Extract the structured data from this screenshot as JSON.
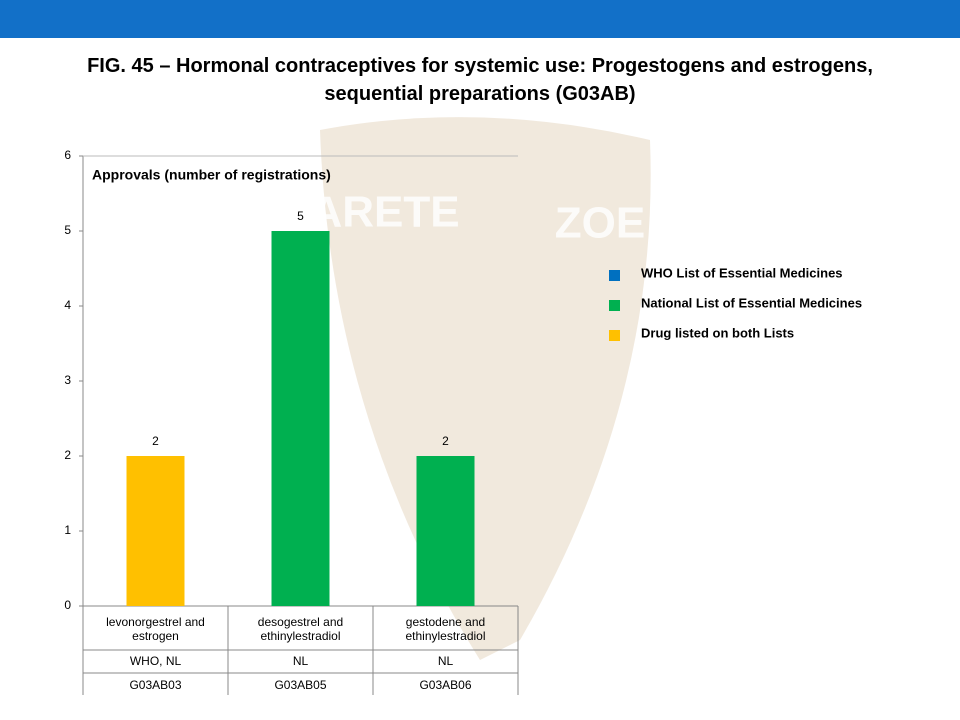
{
  "chart_data": {
    "type": "bar",
    "title": "FIG. 45 – Hormonal contraceptives for systemic use: Progestogens and estrogens, sequential preparations (G03AB)",
    "y_label": "Approvals (number of registrations)",
    "watermark": [
      "ARETE",
      "ZOE"
    ],
    "categories": [
      "levonorgestrel and estrogen",
      "desogestrel and ethinylestradiol",
      "gestodene and ethinylestradiol"
    ],
    "lists": [
      "WHO, NL",
      "NL",
      "NL"
    ],
    "codes": [
      "G03AB03",
      "G03AB05",
      "G03AB06"
    ],
    "values": [
      2,
      5,
      2
    ],
    "colors": [
      "#ffc000",
      "#00b050",
      "#00b050"
    ],
    "ylim": [
      0,
      6
    ],
    "yticks": [
      0,
      1,
      2,
      3,
      4,
      5,
      6
    ],
    "legend": [
      {
        "name": "WHO List of Essential Medicines",
        "color": "#0070c0"
      },
      {
        "name": "National List of Essential Medicines",
        "color": "#00b050"
      },
      {
        "name": "Drug listed on both Lists",
        "color": "#ffc000"
      }
    ]
  }
}
